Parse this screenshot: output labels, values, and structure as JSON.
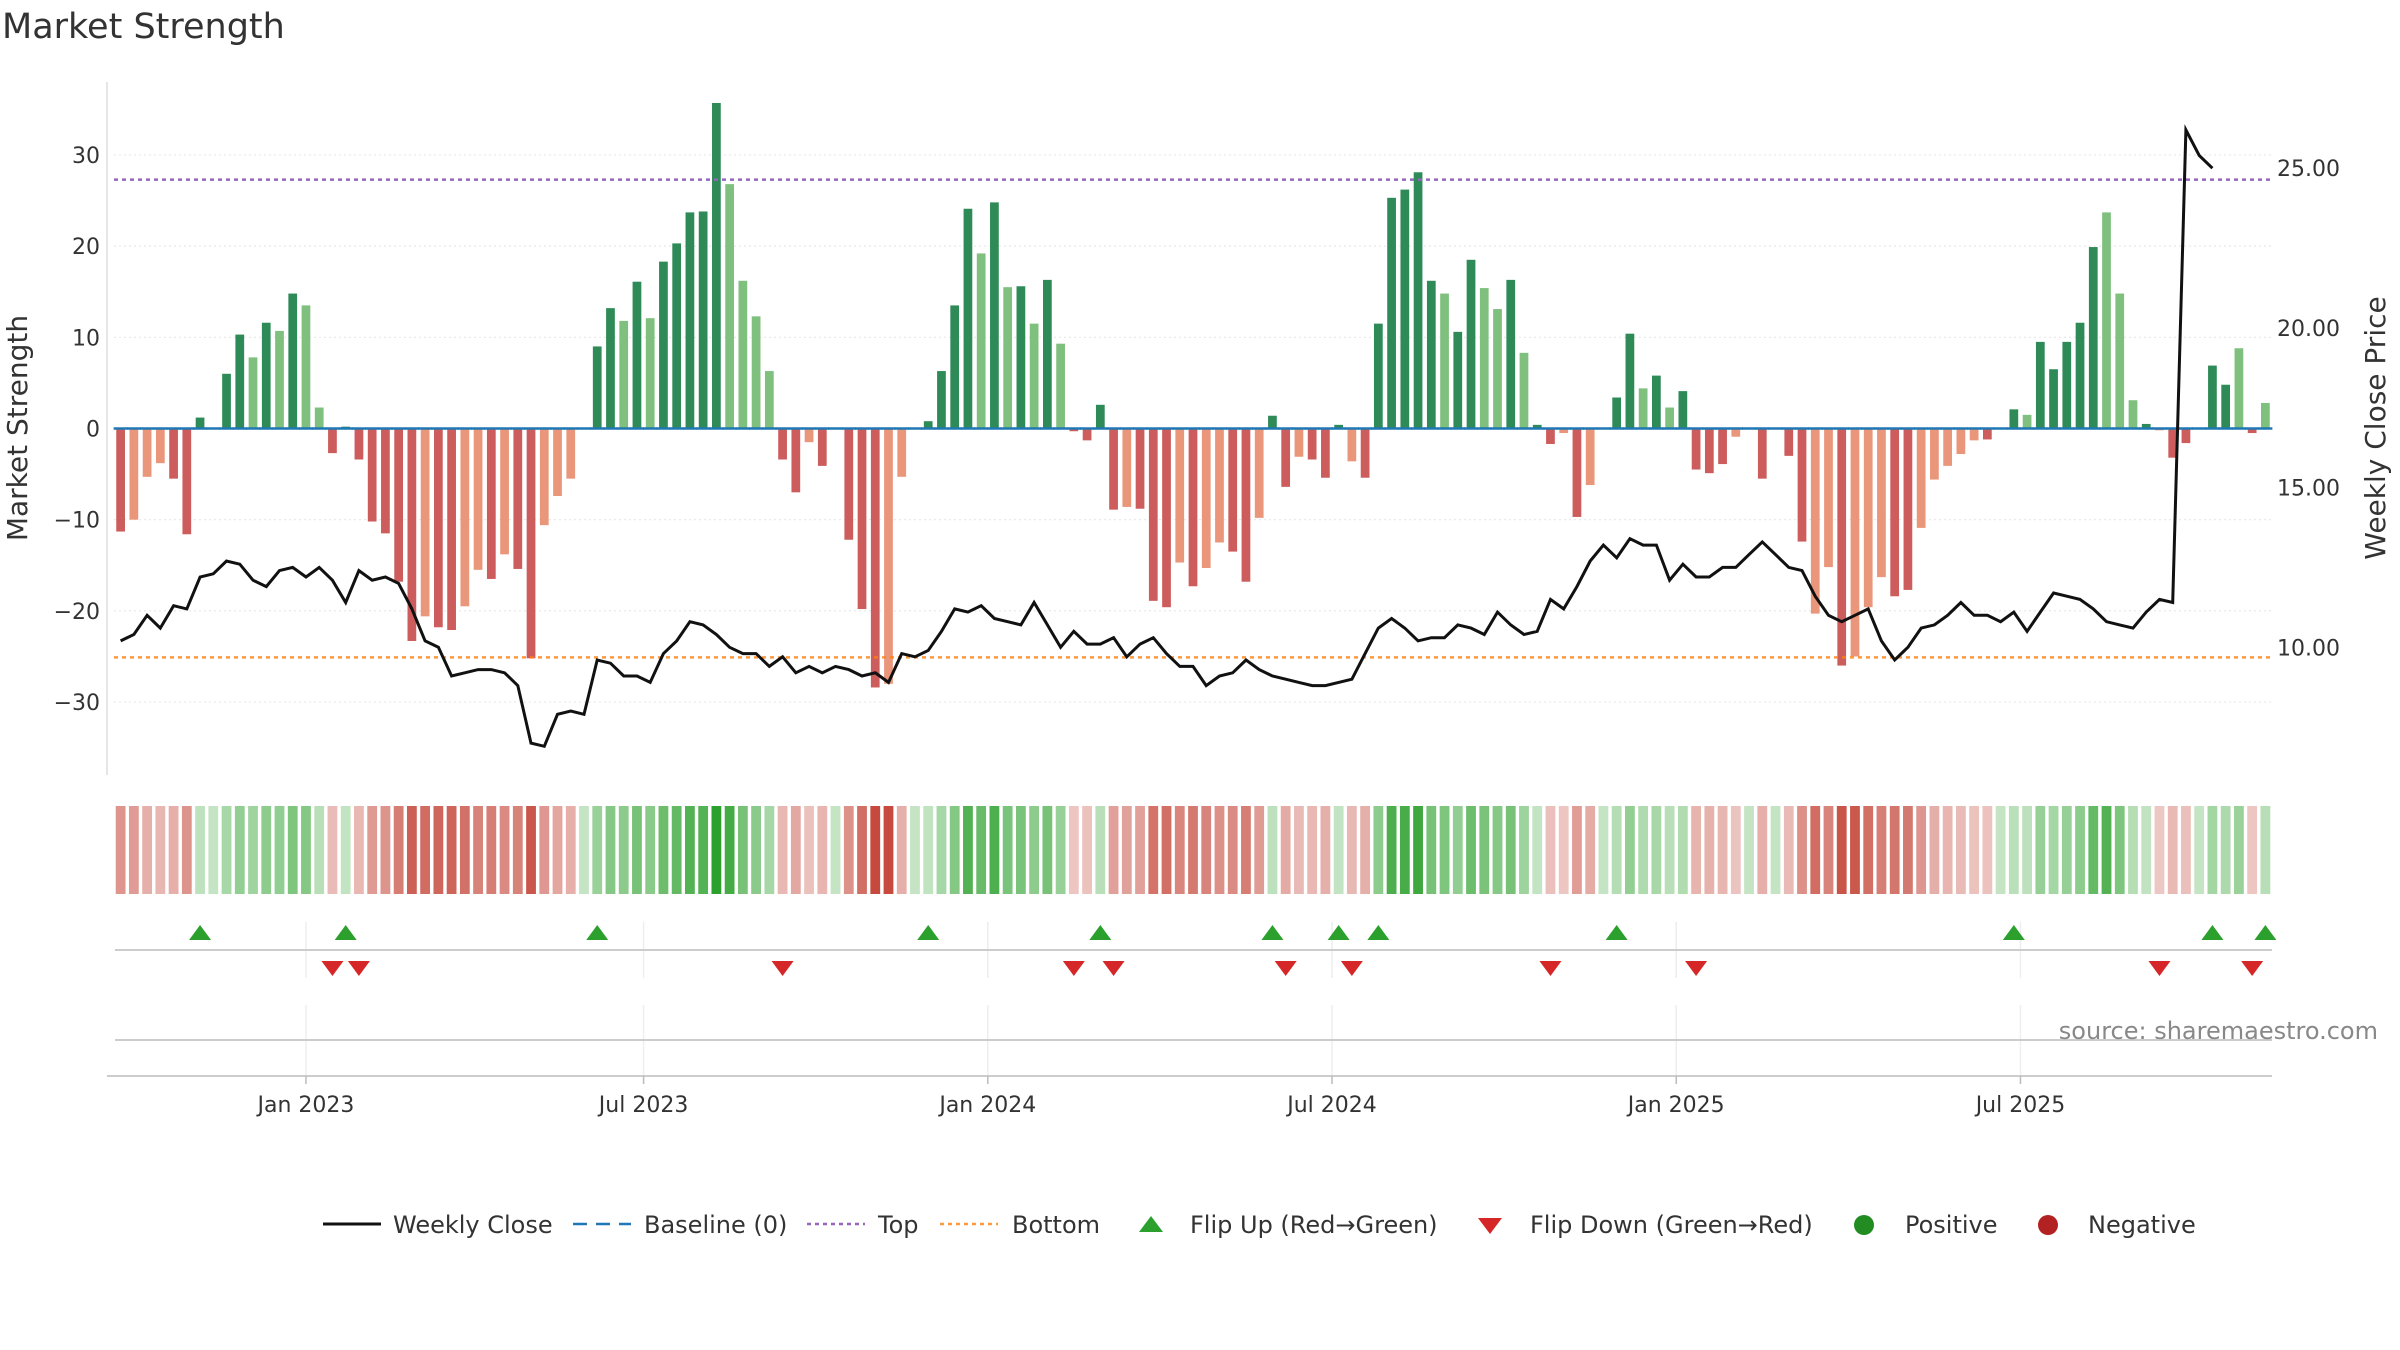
{
  "chart_data": {
    "type": "bar",
    "title": "Market Strength",
    "ylabel": "Market Strength",
    "y2label": "Weekly Close Price",
    "ylim": [
      -38,
      38
    ],
    "y2lim": [
      6,
      27.7
    ],
    "yticks": [
      30,
      20,
      10,
      0,
      -10,
      -20,
      -30
    ],
    "y2ticks": [
      "25.00",
      "20.00",
      "15.00",
      "10.00"
    ],
    "y2tick_values": [
      25,
      20,
      15,
      10
    ],
    "top_level": 27.3,
    "bottom_level": -25.1,
    "x_tick_labels": [
      "Jan 2023",
      "Jul 2023",
      "Jan 2024",
      "Jul 2024",
      "Jan 2025",
      "Jul 2025"
    ],
    "x_tick_index": [
      14.5,
      40.0,
      66.0,
      92.0,
      118.0,
      144.0
    ],
    "source": "source: sharemaestro.com",
    "colors": {
      "positive_dark": "#2e8b57",
      "positive_light": "#7fc07f",
      "negative_dark": "#cd5c5c",
      "negative_light": "#e9967a",
      "close_line": "#111111",
      "baseline": "#1f77b4",
      "top": "#9467bd",
      "bottom": "#ff7f0e",
      "flip_up": "#2ca02c",
      "flip_down": "#d62728",
      "positive_dot": "#228b22",
      "negative_dot": "#b22222"
    },
    "strength": [
      -11.3,
      -10,
      -5.3,
      -3.8,
      -5.5,
      -11.6,
      1.2,
      0,
      6,
      10.3,
      7.8,
      11.6,
      10.7,
      14.8,
      13.5,
      2.3,
      -2.7,
      0.2,
      -3.4,
      -10.2,
      -11.5,
      -16.8,
      -23.3,
      -20.6,
      -21.8,
      -22.1,
      -19.5,
      -15.5,
      -16.5,
      -13.8,
      -15.4,
      -25.2,
      -10.6,
      -7.4,
      -5.5,
      0,
      9,
      13.2,
      11.8,
      16.1,
      12.1,
      18.3,
      20.3,
      23.7,
      23.8,
      35.7,
      26.8,
      16.2,
      12.3,
      6.3,
      -3.4,
      -7,
      -1.5,
      -4.1,
      0,
      -12.2,
      -19.8,
      -28.4,
      -28,
      -5.3,
      0,
      0.8,
      6.3,
      13.5,
      24.1,
      19.2,
      24.8,
      15.5,
      15.6,
      11.5,
      16.3,
      9.3,
      -0.3,
      -1.3,
      2.6,
      -8.9,
      -8.6,
      -8.8,
      -18.9,
      -19.6,
      -14.7,
      -17.3,
      -15.3,
      -12.5,
      -13.5,
      -16.8,
      -9.8,
      1.4,
      -6.4,
      -3.1,
      -3.4,
      -5.4,
      0.4,
      -3.6,
      -5.4,
      11.5,
      25.3,
      26.2,
      28.1,
      16.2,
      14.8,
      10.6,
      18.5,
      15.4,
      13.1,
      16.3,
      8.3,
      0.4,
      -1.7,
      -0.5,
      -9.7,
      -6.2,
      0,
      3.4,
      10.4,
      4.4,
      5.8,
      2.3,
      4.1,
      -4.5,
      -4.9,
      -3.9,
      -0.9,
      0,
      -5.5,
      0,
      -3,
      -12.4,
      -20.3,
      -15.2,
      -26,
      -25,
      -19.6,
      -16.3,
      -18.4,
      -17.7,
      -10.9,
      -5.6,
      -4.1,
      -2.8,
      -1.3,
      -1.2,
      0,
      2.1,
      1.5,
      9.5,
      6.5,
      9.5,
      11.6,
      19.9,
      23.7,
      14.8,
      3.1,
      0.5,
      -0.2,
      -3.2,
      -1.6,
      0,
      6.9,
      4.8,
      8.8,
      -0.5,
      2.8
    ],
    "strength_shade": [
      "d",
      "l",
      "l",
      "l",
      "d",
      "d",
      "d",
      "d",
      "d",
      "d",
      "l",
      "d",
      "l",
      "d",
      "l",
      "l",
      "d",
      "d",
      "d",
      "d",
      "d",
      "d",
      "d",
      "l",
      "d",
      "d",
      "l",
      "l",
      "d",
      "l",
      "d",
      "d",
      "l",
      "l",
      "l",
      "d",
      "d",
      "d",
      "l",
      "d",
      "l",
      "d",
      "d",
      "d",
      "d",
      "d",
      "l",
      "l",
      "l",
      "l",
      "d",
      "d",
      "l",
      "d",
      "d",
      "d",
      "d",
      "d",
      "l",
      "l",
      "d",
      "d",
      "d",
      "d",
      "d",
      "l",
      "d",
      "l",
      "d",
      "l",
      "d",
      "l",
      "d",
      "d",
      "d",
      "d",
      "l",
      "d",
      "d",
      "d",
      "l",
      "d",
      "l",
      "l",
      "d",
      "d",
      "l",
      "d",
      "d",
      "l",
      "d",
      "d",
      "d",
      "l",
      "d",
      "d",
      "d",
      "d",
      "d",
      "d",
      "l",
      "d",
      "d",
      "l",
      "l",
      "d",
      "l",
      "d",
      "d",
      "l",
      "d",
      "l",
      "d",
      "d",
      "d",
      "l",
      "d",
      "l",
      "d",
      "d",
      "d",
      "d",
      "l",
      "d",
      "d",
      "d",
      "d",
      "d",
      "l",
      "l",
      "d",
      "l",
      "l",
      "l",
      "d",
      "d",
      "l",
      "l",
      "l",
      "l",
      "l",
      "d",
      "l",
      "d",
      "l",
      "d",
      "d",
      "d",
      "d",
      "d",
      "l",
      "l",
      "l",
      "d",
      "l",
      "d",
      "d",
      "l",
      "d",
      "d",
      "l",
      "d"
    ],
    "close": [
      10.2,
      10.4,
      11,
      10.6,
      11.3,
      11.2,
      12.2,
      12.3,
      12.7,
      12.6,
      12.1,
      11.9,
      12.4,
      12.5,
      12.2,
      12.5,
      12.1,
      11.4,
      12.4,
      12.1,
      12.2,
      12,
      11.2,
      10.2,
      10,
      9.1,
      9.2,
      9.3,
      9.3,
      9.2,
      8.8,
      7,
      6.9,
      7.9,
      8,
      7.9,
      9.6,
      9.5,
      9.1,
      9.1,
      8.9,
      9.8,
      10.2,
      10.8,
      10.7,
      10.4,
      10,
      9.8,
      9.8,
      9.4,
      9.7,
      9.2,
      9.4,
      9.2,
      9.4,
      9.3,
      9.1,
      9.2,
      8.9,
      9.8,
      9.7,
      9.9,
      10.5,
      11.2,
      11.1,
      11.3,
      10.9,
      10.8,
      10.7,
      11.4,
      10.7,
      10,
      10.5,
      10.1,
      10.1,
      10.3,
      9.7,
      10.1,
      10.3,
      9.8,
      9.4,
      9.4,
      8.8,
      9.1,
      9.2,
      9.6,
      9.3,
      9.1,
      9,
      8.9,
      8.8,
      8.8,
      8.9,
      9,
      9.8,
      10.6,
      10.9,
      10.6,
      10.2,
      10.3,
      10.3,
      10.7,
      10.6,
      10.4,
      11.1,
      10.7,
      10.4,
      10.5,
      11.5,
      11.2,
      11.9,
      12.7,
      13.2,
      12.8,
      13.4,
      13.2,
      13.2,
      12.1,
      12.6,
      12.2,
      12.2,
      12.5,
      12.5,
      12.9,
      13.3,
      12.9,
      12.5,
      12.4,
      11.6,
      11,
      10.8,
      11,
      11.2,
      10.2,
      9.6,
      10,
      10.6,
      10.7,
      11,
      11.4,
      11,
      11,
      10.8,
      11.1,
      10.5,
      11.1,
      11.7,
      11.6,
      11.5,
      11.2,
      10.8,
      10.7,
      10.6,
      11.1,
      11.5,
      11.4,
      26.2,
      25.4,
      25
    ]
  },
  "legend": {
    "weekly_close": "Weekly Close",
    "baseline": "Baseline (0)",
    "top": "Top",
    "bottom": "Bottom",
    "flip_up": "Flip Up (Red→Green)",
    "flip_down": "Flip Down (Green→Red)",
    "positive": "Positive",
    "negative": "Negative"
  }
}
